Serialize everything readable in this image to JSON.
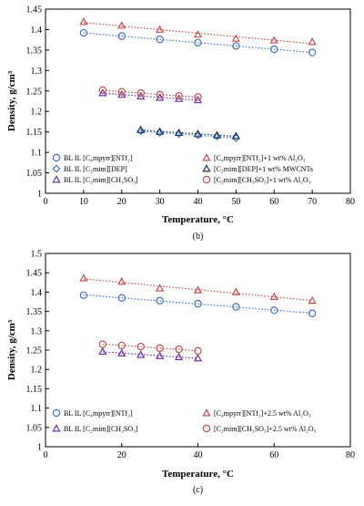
{
  "chart_data": [
    {
      "type": "scatter",
      "panel_label": "(b)",
      "xlabel": "Temperature, °C",
      "ylabel": "Density, g/cm³",
      "xlim": [
        0,
        80
      ],
      "ylim": [
        1,
        1.45
      ],
      "xticks": [
        "0",
        "10",
        "20",
        "30",
        "40",
        "50",
        "60",
        "70",
        "80"
      ],
      "yticks": [
        "1",
        "1.05",
        "1.1",
        "1.15",
        "1.2",
        "1.25",
        "1.3",
        "1.35",
        "1.4",
        "1.45"
      ],
      "grid": false,
      "legend_position": "bottom-inside",
      "series": [
        {
          "name": "BL IL [C₄mpyrr][NTf₂]",
          "marker": "circle",
          "color": "#4472c4",
          "x": [
            10,
            20,
            30,
            40,
            50,
            60,
            70
          ],
          "y": [
            1.392,
            1.384,
            1.376,
            1.368,
            1.36,
            1.352,
            1.344
          ]
        },
        {
          "name": "[C₄mpyrr][NTf₂]+1 wt% Al₂O₃",
          "marker": "triangle",
          "color": "#c0504d",
          "x": [
            10,
            20,
            30,
            40,
            50,
            60,
            70
          ],
          "y": [
            1.419,
            1.41,
            1.4,
            1.388,
            1.378,
            1.374,
            1.37
          ]
        },
        {
          "name": "BL IL [C₂mim][DEP]",
          "marker": "diamond",
          "color": "#4472c4",
          "x": [
            25,
            30,
            35,
            40,
            45,
            50
          ],
          "y": [
            1.152,
            1.148,
            1.145,
            1.142,
            1.139,
            1.135
          ]
        },
        {
          "name": "[C₂mim][DEP]+1 wt% MWCNTs",
          "marker": "triangle",
          "color": "#17375e",
          "x": [
            25,
            30,
            35,
            40,
            45,
            50
          ],
          "y": [
            1.155,
            1.151,
            1.148,
            1.145,
            1.142,
            1.14
          ]
        },
        {
          "name": "BL IL [C₂mim][CH₃SO₃]",
          "marker": "triangle",
          "color": "#7030a0",
          "x": [
            15,
            20,
            25,
            30,
            35,
            40
          ],
          "y": [
            1.245,
            1.241,
            1.237,
            1.234,
            1.231,
            1.228
          ]
        },
        {
          "name": "[C₂mim][CH₃SO₃]+1 wt% Al₂O₃",
          "marker": "circle",
          "color": "#c0504d",
          "x": [
            15,
            20,
            25,
            30,
            35,
            40
          ],
          "y": [
            1.252,
            1.248,
            1.245,
            1.241,
            1.238,
            1.235
          ]
        }
      ]
    },
    {
      "type": "scatter",
      "panel_label": "(c)",
      "xlabel": "Temperature, °C",
      "ylabel": "Density, g/cm³",
      "xlim": [
        0,
        80
      ],
      "ylim": [
        1,
        1.5
      ],
      "xticks": [
        "0",
        "20",
        "40",
        "60",
        "80"
      ],
      "yticks": [
        "1",
        "1.05",
        "1.1",
        "1.15",
        "1.2",
        "1.25",
        "1.3",
        "1.35",
        "1.4",
        "1.45",
        "1.5"
      ],
      "grid": false,
      "legend_position": "bottom-inside",
      "series": [
        {
          "name": "BL IL [C₄mpyrr][NTf₂]",
          "marker": "circle",
          "color": "#4472c4",
          "x": [
            10,
            20,
            30,
            40,
            50,
            60,
            70
          ],
          "y": [
            1.392,
            1.385,
            1.378,
            1.37,
            1.362,
            1.353,
            1.345
          ]
        },
        {
          "name": "[C₄mpyrr][NTf₂]+2.5 wt% Al₂O₃",
          "marker": "triangle",
          "color": "#c0504d",
          "x": [
            10,
            20,
            30,
            40,
            50,
            60,
            70
          ],
          "y": [
            1.436,
            1.427,
            1.41,
            1.405,
            1.4,
            1.388,
            1.378
          ]
        },
        {
          "name": "BL IL [C₂mim][CH₃SO₃]",
          "marker": "triangle",
          "color": "#7030a0",
          "x": [
            15,
            20,
            25,
            30,
            35,
            40
          ],
          "y": [
            1.246,
            1.242,
            1.238,
            1.235,
            1.232,
            1.229
          ]
        },
        {
          "name": "[C₂mim][CH₃SO₃]+2.5 wt% Al₂O₃",
          "marker": "circle",
          "color": "#c0504d",
          "x": [
            15,
            20,
            25,
            30,
            35,
            40
          ],
          "y": [
            1.265,
            1.262,
            1.259,
            1.255,
            1.252,
            1.248
          ]
        }
      ]
    }
  ]
}
